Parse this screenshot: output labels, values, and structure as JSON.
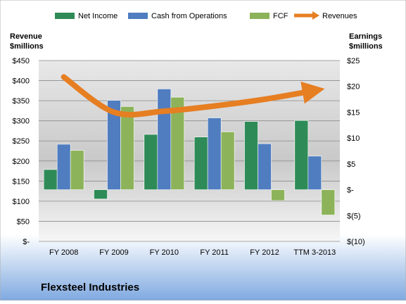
{
  "chart_data": {
    "type": "bar",
    "company": "Flexsteel Industries",
    "left_axis_title": [
      "Revenue",
      "$millions"
    ],
    "right_axis_title": [
      "Earnings",
      "$millions"
    ],
    "categories": [
      "FY 2008",
      "FY 2009",
      "FY 2010",
      "FY 2011",
      "FY 2012",
      "TTM 3-2013"
    ],
    "left_axis": {
      "min": 0,
      "max": 450,
      "step": 50,
      "tick_labels": [
        "$-",
        "$50",
        "$100",
        "$150",
        "$200",
        "$250",
        "$300",
        "$350",
        "$400",
        "$450"
      ]
    },
    "right_axis": {
      "min": -10,
      "max": 25,
      "step": 5,
      "tick_labels": [
        "$(10)",
        "$(5)",
        "$-",
        "$5",
        "$10",
        "$15",
        "$20",
        "$25"
      ]
    },
    "series": [
      {
        "name": "Net Income",
        "kind": "bar",
        "axis": "right",
        "color": "#2e8b57",
        "values": [
          3.9,
          -1.8,
          10.7,
          10.2,
          13.2,
          13.4
        ]
      },
      {
        "name": "Cash from Operations",
        "kind": "bar",
        "axis": "right",
        "color": "#4f7dc0",
        "values": [
          8.8,
          17.3,
          19.5,
          13.9,
          8.9,
          6.5
        ]
      },
      {
        "name": "FCF",
        "kind": "bar",
        "axis": "right",
        "color": "#8db35a",
        "values": [
          7.6,
          16.1,
          17.9,
          11.2,
          -2.1,
          -4.9
        ]
      },
      {
        "name": "Revenues",
        "kind": "line",
        "axis": "right",
        "color": "#e67e22",
        "values": [
          21.8,
          15.0,
          15.2,
          16.2,
          17.5,
          19.2
        ]
      }
    ],
    "grid": true,
    "legend_position": "top"
  }
}
